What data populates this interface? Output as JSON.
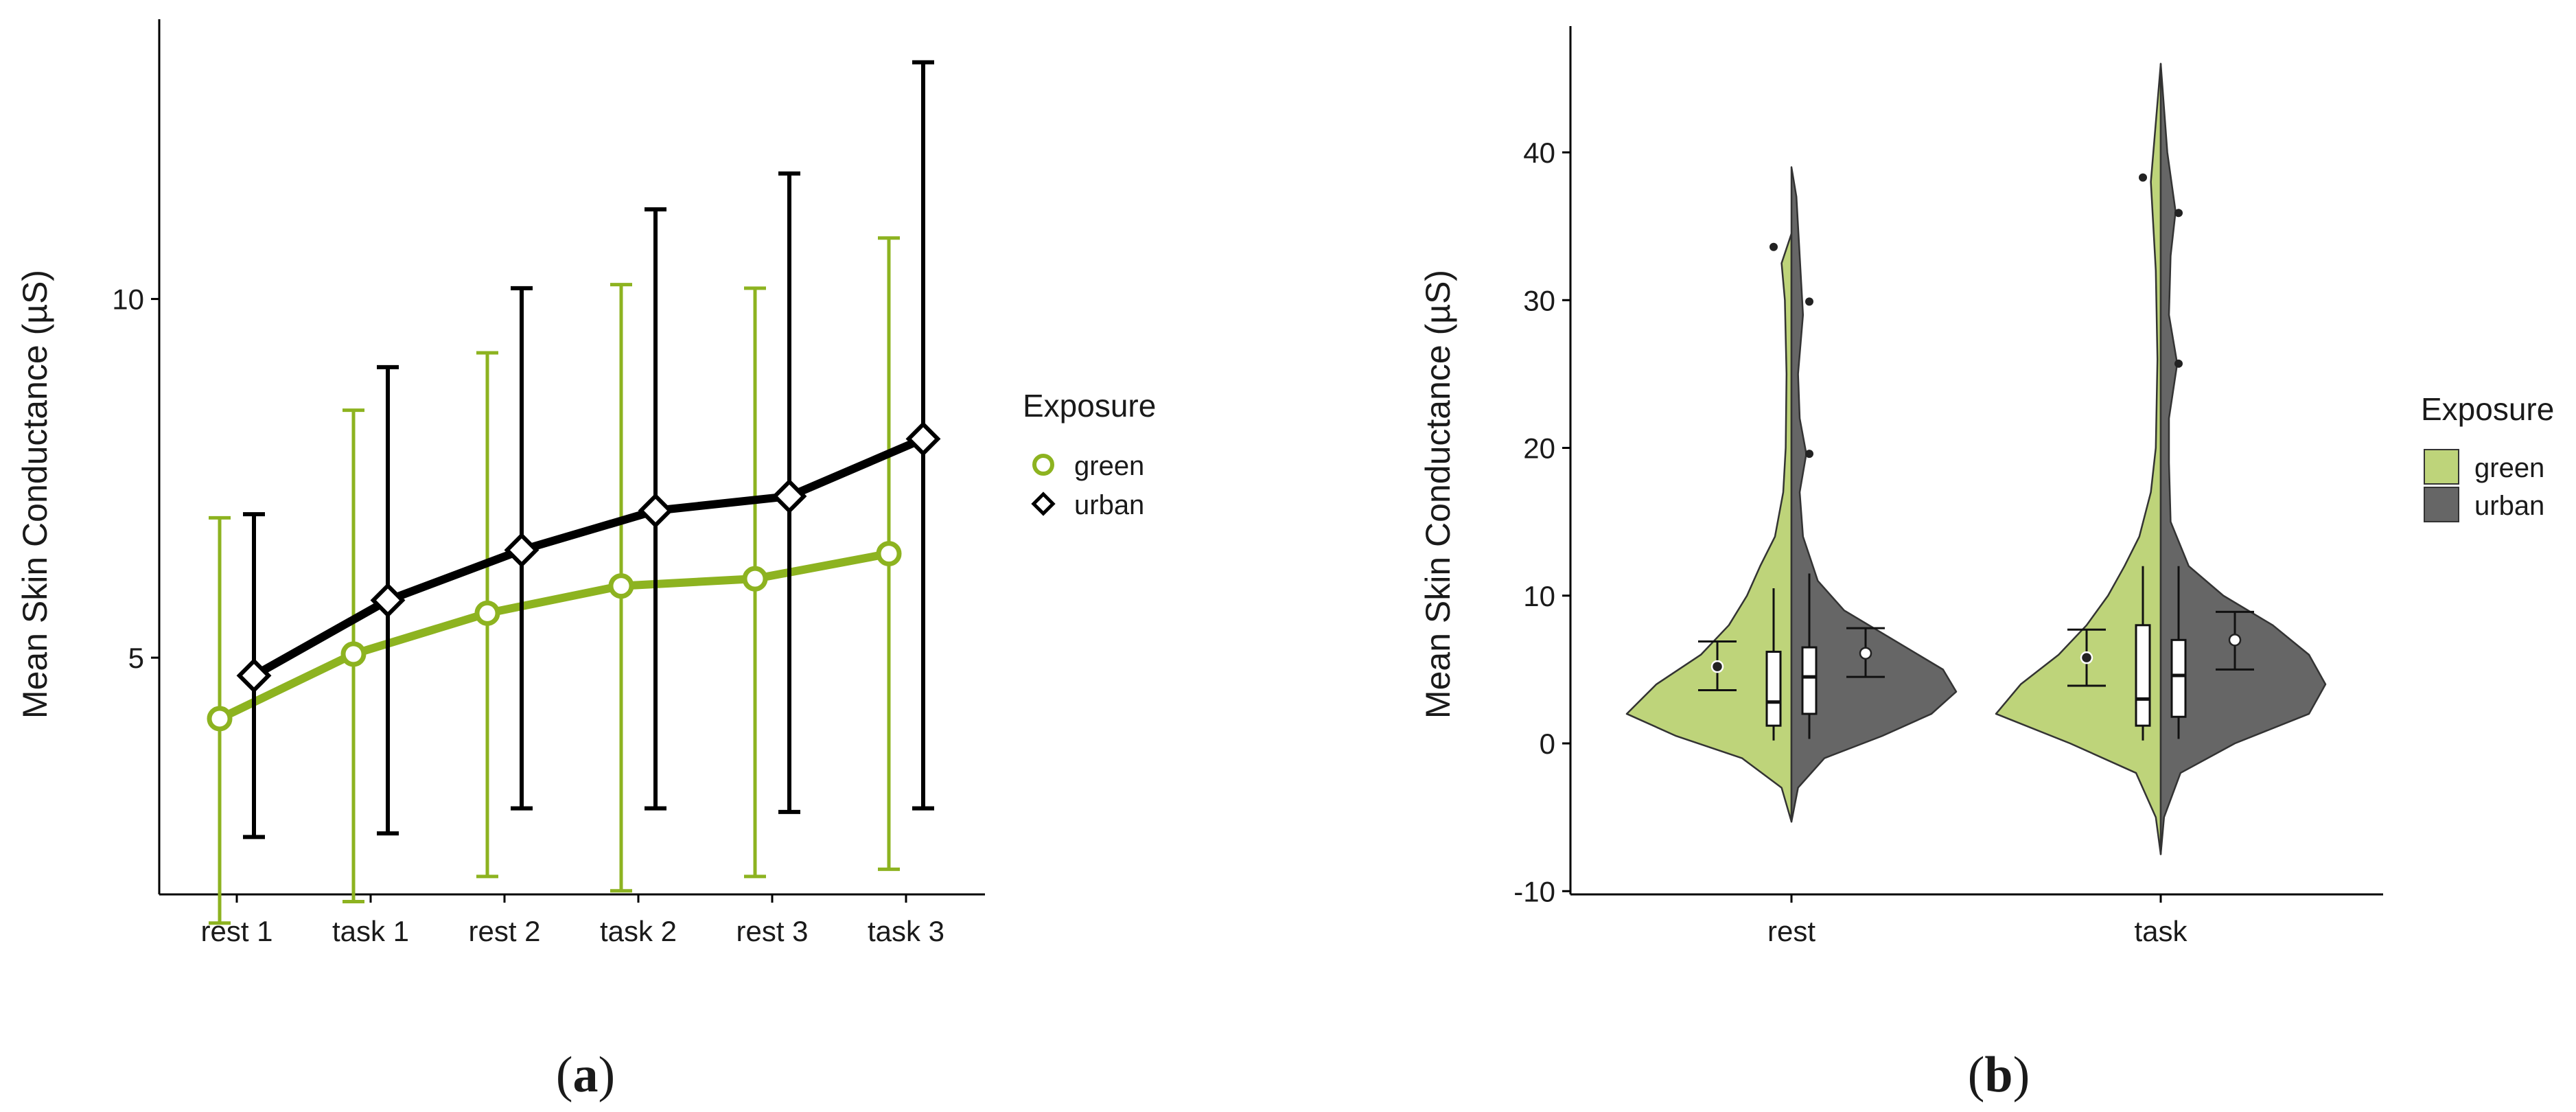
{
  "panels": {
    "a": "(a)",
    "b": "(b)"
  },
  "chart_data": [
    {
      "type": "line",
      "panel": "a",
      "ylabel": "Mean Skin Conductance (µS)",
      "xlabel": "",
      "categories": [
        "rest 1",
        "task 1",
        "rest 2",
        "task 2",
        "rest 3",
        "task 3"
      ],
      "yticks": [
        5,
        10
      ],
      "ylim": [
        1.7,
        13.9
      ],
      "series": [
        {
          "name": "green",
          "color": "#8db320",
          "marker": "circle",
          "values": [
            4.15,
            5.05,
            5.62,
            6.0,
            6.1,
            6.45
          ],
          "error_low": [
            1.3,
            1.6,
            1.95,
            1.75,
            1.95,
            2.05
          ],
          "error_high": [
            6.95,
            8.45,
            9.25,
            10.2,
            10.15,
            10.85
          ]
        },
        {
          "name": "urban",
          "color": "#000000",
          "marker": "diamond",
          "values": [
            4.75,
            5.8,
            6.5,
            7.05,
            7.25,
            8.05
          ],
          "error_low": [
            2.5,
            2.55,
            2.9,
            2.9,
            2.85,
            2.9
          ],
          "error_high": [
            7.0,
            9.05,
            10.15,
            11.25,
            11.75,
            13.3
          ]
        }
      ],
      "legend": {
        "title": "Exposure",
        "entries": [
          "green",
          "urban"
        ],
        "position": "right"
      }
    },
    {
      "type": "violin",
      "panel": "b",
      "ylabel": "Mean Skin Conductance (µS)",
      "xlabel": "",
      "categories": [
        "rest",
        "task"
      ],
      "yticks": [
        -10,
        0,
        10,
        20,
        30,
        40
      ],
      "ylim": [
        -10,
        48
      ],
      "series": [
        {
          "name": "green",
          "color": "#bed47a",
          "groups": [
            {
              "category": "rest",
              "range": [
                -5.3,
                34.5
              ],
              "box": {
                "q1": 1.2,
                "median": 2.8,
                "q3": 6.2,
                "whisker_low": 0.2,
                "whisker_high": 10.5
              },
              "mean": 5.2,
              "ci": [
                3.6,
                6.9
              ],
              "outliers": [
                33.6
              ]
            },
            {
              "category": "task",
              "range": [
                -7.5,
                46.0
              ],
              "box": {
                "q1": 1.2,
                "median": 3.0,
                "q3": 8.0,
                "whisker_low": 0.2,
                "whisker_high": 12.0
              },
              "mean": 5.8,
              "ci": [
                3.9,
                7.7
              ],
              "outliers": [
                38.3
              ]
            }
          ]
        },
        {
          "name": "urban",
          "color": "#666666",
          "groups": [
            {
              "category": "rest",
              "range": [
                -5.3,
                39.0
              ],
              "box": {
                "q1": 2.0,
                "median": 4.5,
                "q3": 6.5,
                "whisker_low": 0.3,
                "whisker_high": 11.5
              },
              "mean": 6.1,
              "ci": [
                4.5,
                7.8
              ],
              "outliers": [
                19.6,
                29.9
              ]
            },
            {
              "category": "task",
              "range": [
                -7.5,
                46.0
              ],
              "box": {
                "q1": 1.8,
                "median": 4.6,
                "q3": 7.0,
                "whisker_low": 0.3,
                "whisker_high": 12.0
              },
              "mean": 7.0,
              "ci": [
                5.0,
                8.9
              ],
              "outliers": [
                25.7,
                35.9
              ]
            }
          ]
        }
      ],
      "legend": {
        "title": "Exposure",
        "entries": [
          "green",
          "urban"
        ],
        "position": "right"
      }
    }
  ]
}
